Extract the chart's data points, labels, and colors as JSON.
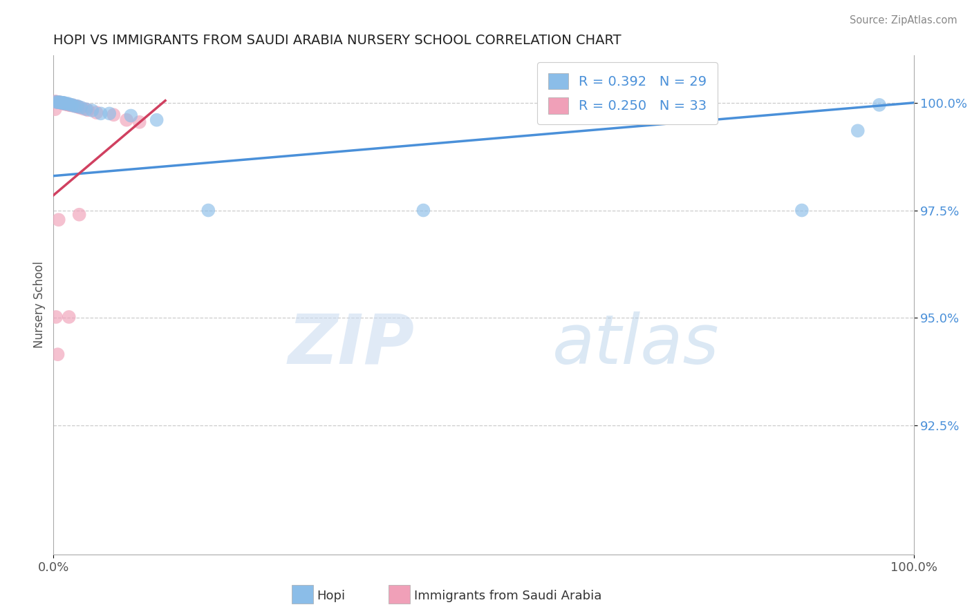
{
  "title": "HOPI VS IMMIGRANTS FROM SAUDI ARABIA NURSERY SCHOOL CORRELATION CHART",
  "source_text": "Source: ZipAtlas.com",
  "ylabel": "Nursery School",
  "watermark_zip": "ZIP",
  "watermark_atlas": "atlas",
  "xlim": [
    0.0,
    1.0
  ],
  "ylim": [
    0.895,
    1.011
  ],
  "yticks": [
    0.925,
    0.95,
    0.975,
    1.0
  ],
  "ytick_labels": [
    "92.5%",
    "95.0%",
    "97.5%",
    "100.0%"
  ],
  "xticks": [
    0.0,
    1.0
  ],
  "xtick_labels": [
    "0.0%",
    "100.0%"
  ],
  "hopi_color": "#8bbde8",
  "hopi_edge_color": "#6aa0d0",
  "saudi_color": "#f0a0b8",
  "saudi_edge_color": "#d88098",
  "hopi_line_color": "#4a90d9",
  "saudi_line_color": "#d04060",
  "background_color": "#ffffff",
  "grid_color": "#cccccc",
  "title_color": "#222222",
  "ytick_color": "#4a90d9",
  "source_color": "#888888",
  "legend_text_color": "#4a90d9",
  "hopi_legend_label": "R = 0.392   N = 29",
  "saudi_legend_label": "R = 0.250   N = 33",
  "bottom_hopi_label": "Hopi",
  "bottom_saudi_label": "Immigrants from Saudi Arabia",
  "hopi_scatter_x": [
    0.003,
    0.005,
    0.007,
    0.008,
    0.009,
    0.01,
    0.011,
    0.012,
    0.013,
    0.015,
    0.017,
    0.02,
    0.022,
    0.025,
    0.028,
    0.032,
    0.038,
    0.045,
    0.055,
    0.065,
    0.09,
    0.12,
    0.18,
    0.43,
    0.62,
    0.72,
    0.87,
    0.935,
    0.96
  ],
  "hopi_scatter_y": [
    1.0002,
    1.0001,
    1.0001,
    1.0001,
    1.0,
    1.0,
    1.0,
    1.0,
    0.9998,
    0.9998,
    0.9998,
    0.9995,
    0.9995,
    0.9992,
    0.9992,
    0.9989,
    0.9985,
    0.9982,
    0.9975,
    0.9975,
    0.997,
    0.996,
    0.975,
    0.975,
    0.997,
    0.9995,
    0.975,
    0.9935,
    0.9995
  ],
  "saudi_scatter_x": [
    0.002,
    0.004,
    0.005,
    0.006,
    0.007,
    0.008,
    0.009,
    0.01,
    0.011,
    0.012,
    0.013,
    0.014,
    0.015,
    0.016,
    0.018,
    0.02,
    0.022,
    0.024,
    0.026,
    0.028,
    0.03,
    0.035,
    0.04,
    0.05,
    0.07,
    0.085,
    0.1,
    0.03,
    0.018,
    0.005,
    0.003,
    0.002,
    0.006
  ],
  "saudi_scatter_y": [
    1.0003,
    1.0002,
    1.0001,
    1.0001,
    1.0001,
    1.0,
    1.0,
    0.9999,
    0.9999,
    0.9998,
    0.9998,
    0.9997,
    0.9997,
    0.9996,
    0.9995,
    0.9994,
    0.9994,
    0.9993,
    0.9992,
    0.9991,
    0.9989,
    0.9986,
    0.9983,
    0.9977,
    0.9972,
    0.996,
    0.9955,
    0.974,
    0.9502,
    0.9415,
    0.9502,
    0.9985,
    0.9728
  ],
  "hopi_line_x": [
    0.0,
    1.0
  ],
  "hopi_line_y": [
    0.983,
    1.0
  ],
  "saudi_line_x": [
    0.0,
    0.13
  ],
  "saudi_line_y": [
    0.9785,
    1.0005
  ]
}
